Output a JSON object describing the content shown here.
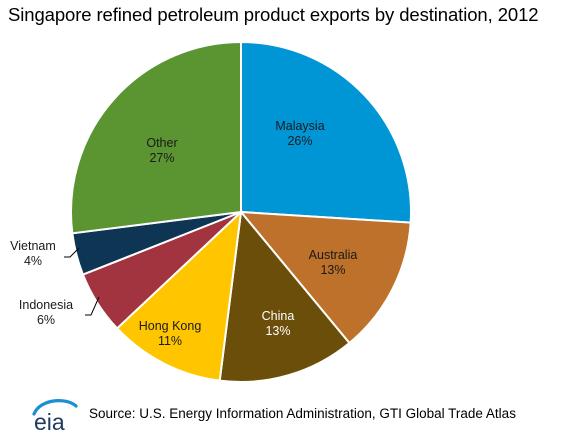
{
  "chart_data": {
    "type": "pie",
    "title": "Singapore refined petroleum product exports by destination, 2012",
    "slices": [
      {
        "label": "Malaysia",
        "pct_label": "26%",
        "value": 26,
        "color": "#0096D6",
        "text_color": "#1a1a1a"
      },
      {
        "label": "Australia",
        "pct_label": "13%",
        "value": 13,
        "color": "#BD712A",
        "text_color": "#1a1a1a"
      },
      {
        "label": "China",
        "pct_label": "13%",
        "value": 13,
        "color": "#6B4E0A",
        "text_color": "#ffffff"
      },
      {
        "label": "Hong Kong",
        "pct_label": "11%",
        "value": 11,
        "color": "#FFC600",
        "text_color": "#1a1a1a"
      },
      {
        "label": "Indonesia",
        "pct_label": "6%",
        "value": 6,
        "color": "#A1343E",
        "text_color": "#1a1a1a"
      },
      {
        "label": "Vietnam",
        "pct_label": "4%",
        "value": 4,
        "color": "#0E3654",
        "text_color": "#1a1a1a"
      },
      {
        "label": "Other",
        "pct_label": "27%",
        "value": 27,
        "color": "#5A9532",
        "text_color": "#1a1a1a"
      }
    ]
  },
  "footer": {
    "logo_text": "eia",
    "source": "Source: U.S. Energy Information Administration, GTI Global Trade Atlas"
  }
}
